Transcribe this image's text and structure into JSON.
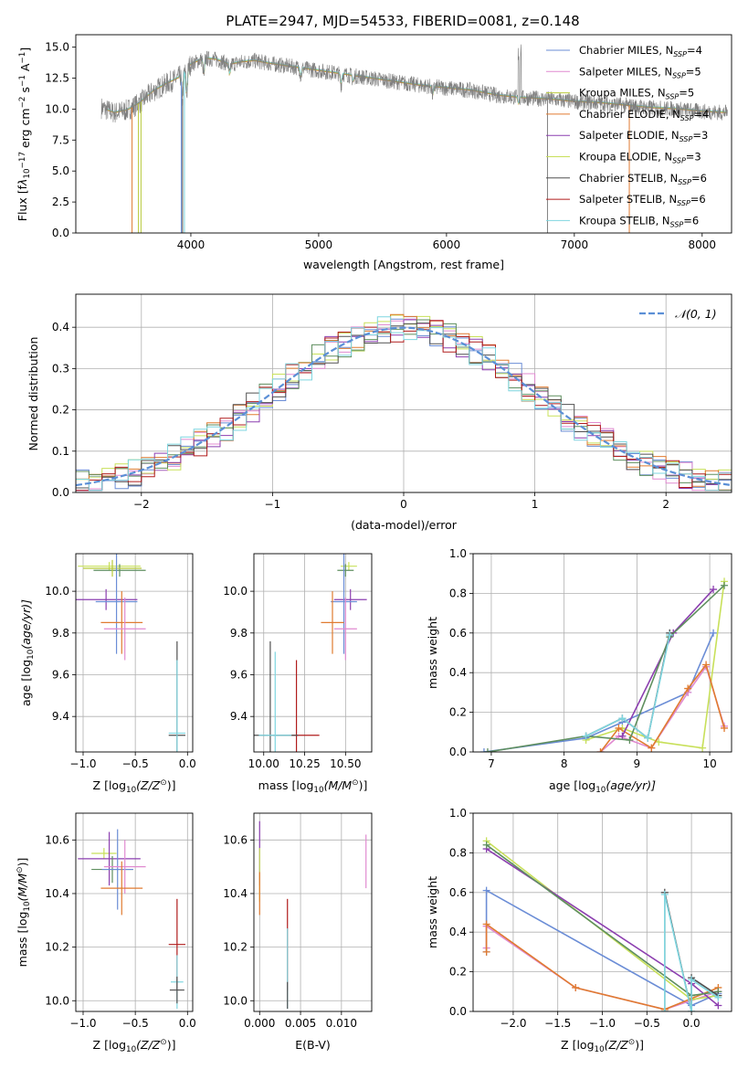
{
  "title": "PLATE=2947, MJD=54533, FIBERID=0081, z=0.148",
  "chart_data": [
    {
      "id": "spectrum",
      "type": "line",
      "title": "PLATE=2947, MJD=54533, FIBERID=0081, z=0.148",
      "xlabel": "wavelength [Angstrom, rest frame]",
      "ylabel_parts": [
        "Flux [f",
        "λ",
        "10",
        "−17",
        " erg cm",
        "−2",
        " s",
        "−1",
        " A",
        "−1",
        "]"
      ],
      "xlim": [
        3100,
        8230
      ],
      "ylim": [
        0,
        16
      ],
      "xticks": [
        4000,
        5000,
        6000,
        7000,
        8000
      ],
      "yticks": [
        0.0,
        2.5,
        5.0,
        7.5,
        10.0,
        12.5,
        15.0
      ],
      "grid": false,
      "legend_position": "right",
      "legend": [
        {
          "label": "Chabrier MILES, N",
          "sub": "SSP",
          "value": "=4",
          "color": "#6b8dd6"
        },
        {
          "label": "Salpeter MILES, N",
          "sub": "SSP",
          "value": "=5",
          "color": "#e08ad0"
        },
        {
          "label": "Kroupa MILES, N",
          "sub": "SSP",
          "value": "=5",
          "color": "#b8c93a"
        },
        {
          "label": "Chabrier ELODIE, N",
          "sub": "SSP",
          "value": "=4",
          "color": "#e07b30"
        },
        {
          "label": "Salpeter ELODIE, N",
          "sub": "SSP",
          "value": "=3",
          "color": "#8c3fb0"
        },
        {
          "label": "Kroupa ELODIE, N",
          "sub": "SSP",
          "value": "=3",
          "color": "#c8e05a"
        },
        {
          "label": "Chabrier STELIB, N",
          "sub": "SSP",
          "value": "=6",
          "color": "#505050"
        },
        {
          "label": "Salpeter STELIB, N",
          "sub": "SSP",
          "value": "=6",
          "color": "#b01c1c"
        },
        {
          "label": "Kroupa STELIB, N",
          "sub": "SSP",
          "value": "=6",
          "color": "#7fd6e0"
        }
      ],
      "data_color": "#808080",
      "continuum": {
        "x": [
          3300,
          3400,
          3500,
          3600,
          3700,
          3800,
          3900,
          4000,
          4100,
          4200,
          4300,
          4400,
          4500,
          4600,
          4800,
          5000,
          5200,
          5400,
          5600,
          5800,
          6000,
          6200,
          6400,
          6600,
          6800,
          7000,
          7200,
          7400,
          7600,
          7800,
          8000,
          8200
        ],
        "y": [
          10.1,
          9.7,
          9.9,
          10.5,
          11.4,
          12.0,
          12.5,
          13.6,
          14.1,
          14.0,
          13.6,
          13.8,
          13.9,
          13.7,
          13.4,
          13.1,
          12.8,
          12.5,
          12.2,
          11.9,
          11.7,
          11.5,
          11.1,
          10.9,
          10.8,
          10.6,
          10.5,
          10.3,
          10.1,
          10.0,
          9.8,
          9.7
        ]
      },
      "model_colors": [
        "#e07b30",
        "#b8c93a",
        "#7fd6e0"
      ]
    },
    {
      "id": "residuals",
      "type": "histogram",
      "xlabel": "(data-model)/error",
      "ylabel": "Normed distribution",
      "xlim": [
        -2.5,
        2.5
      ],
      "ylim": [
        0,
        0.48
      ],
      "xticks": [
        -2,
        -1,
        0,
        1,
        2
      ],
      "yticks": [
        0.0,
        0.1,
        0.2,
        0.3,
        0.4
      ],
      "grid": true,
      "legend_position": "top-right",
      "normal_label": "𝒩(0, 1)",
      "normal_color": "#5b8fd6",
      "bin_width": 0.1,
      "hist_colors": [
        "#6b8dd6",
        "#e08ad0",
        "#c8e05a",
        "#e07b30",
        "#8c3fb0",
        "#5f8f5f",
        "#505050",
        "#b01c1c",
        "#7fd6e0"
      ]
    },
    {
      "id": "age-vs-Z",
      "type": "scatter",
      "xlabel_parts": [
        "Z [log",
        "10",
        "(Z/Z",
        "⊙",
        ")]"
      ],
      "ylabel_parts": [
        "age  [log",
        "10",
        "(age/yr)]"
      ],
      "xlim": [
        -1.07,
        0.05
      ],
      "ylim": [
        9.23,
        10.18
      ],
      "xticks": [
        -1.0,
        -0.5,
        0.0
      ],
      "yticks": [
        9.4,
        9.6,
        9.8,
        10.0
      ],
      "grid": true,
      "points": [
        {
          "x": -0.75,
          "xerr": 0.3,
          "y": 10.12,
          "yerr": 0.02,
          "color": "#c8e05a"
        },
        {
          "x": -0.65,
          "xerr": 0.25,
          "y": 10.1,
          "yerr": 0.03,
          "color": "#5f8f5f"
        },
        {
          "x": -0.72,
          "xerr": 0.28,
          "y": 10.11,
          "yerr": 0.04,
          "color": "#b8c93a"
        },
        {
          "x": -0.78,
          "xerr": 0.3,
          "y": 9.96,
          "yerr": 0.05,
          "color": "#8c3fb0"
        },
        {
          "x": -0.68,
          "xerr": 0.2,
          "y": 9.95,
          "yerr": 0.25,
          "color": "#6b8dd6"
        },
        {
          "x": -0.63,
          "xerr": 0.2,
          "y": 9.85,
          "yerr": 0.15,
          "color": "#e07b30"
        },
        {
          "x": -0.6,
          "xerr": 0.2,
          "y": 9.82,
          "yerr": 0.15,
          "color": "#e08ad0"
        },
        {
          "x": -0.1,
          "xerr": 0.08,
          "y": 9.31,
          "yerr": 0.45,
          "color": "#505050"
        },
        {
          "x": -0.1,
          "xerr": 0.08,
          "y": 9.32,
          "yerr": 0.35,
          "color": "#7fd6e0"
        }
      ]
    },
    {
      "id": "age-vs-mass",
      "type": "scatter",
      "xlabel_parts": [
        "mass [log",
        "10",
        "(M/M",
        "⊙",
        ")]"
      ],
      "xlim": [
        9.94,
        10.66
      ],
      "ylim": [
        9.23,
        10.18
      ],
      "xticks": [
        10.0,
        10.25,
        10.5
      ],
      "xtick_labels": [
        "10.00",
        "10.25",
        "10.50"
      ],
      "yticks": [
        9.4,
        9.6,
        9.8,
        10.0
      ],
      "grid": true,
      "points": [
        {
          "x": 10.52,
          "xerr": 0.05,
          "y": 10.12,
          "yerr": 0.02,
          "color": "#c8e05a"
        },
        {
          "x": 10.5,
          "xerr": 0.05,
          "y": 10.1,
          "yerr": 0.03,
          "color": "#5f8f5f"
        },
        {
          "x": 10.53,
          "xerr": 0.1,
          "y": 9.96,
          "yerr": 0.05,
          "color": "#8c3fb0"
        },
        {
          "x": 10.49,
          "xerr": 0.08,
          "y": 9.95,
          "yerr": 0.25,
          "color": "#6b8dd6"
        },
        {
          "x": 10.42,
          "xerr": 0.07,
          "y": 9.85,
          "yerr": 0.15,
          "color": "#e07b30"
        },
        {
          "x": 10.5,
          "xerr": 0.07,
          "y": 9.82,
          "yerr": 0.15,
          "color": "#e08ad0"
        },
        {
          "x": 10.2,
          "xerr": 0.14,
          "y": 9.31,
          "yerr": 0.36,
          "color": "#b01c1c"
        },
        {
          "x": 10.04,
          "xerr": 0.17,
          "y": 9.31,
          "yerr": 0.45,
          "color": "#505050"
        },
        {
          "x": 10.07,
          "xerr": 0.1,
          "y": 9.31,
          "yerr": 0.4,
          "color": "#7fd6e0"
        }
      ]
    },
    {
      "id": "weight-vs-age",
      "type": "line",
      "xlabel_parts": [
        "age  [log",
        "10",
        "(age/yr)]"
      ],
      "ylabel": "mass weight",
      "xlim": [
        6.75,
        10.3
      ],
      "ylim": [
        0,
        1
      ],
      "xticks": [
        7,
        8,
        9,
        10
      ],
      "yticks": [
        0.0,
        0.2,
        0.4,
        0.6,
        0.8,
        1.0
      ],
      "grid": true,
      "series": [
        {
          "color": "#6b8dd6",
          "x": [
            6.9,
            8.3,
            8.8,
            9.7,
            10.05
          ],
          "y": [
            0.0,
            0.07,
            0.15,
            0.3,
            0.6
          ]
        },
        {
          "color": "#e08ad0",
          "x": [
            8.5,
            8.75,
            9.2,
            9.7,
            9.95,
            10.2
          ],
          "y": [
            0.0,
            0.08,
            0.02,
            0.3,
            0.43,
            0.13
          ]
        },
        {
          "color": "#c8e05a",
          "x": [
            8.3,
            8.8,
            9.3,
            9.9,
            10.2
          ],
          "y": [
            0.06,
            0.12,
            0.05,
            0.02,
            0.86
          ]
        },
        {
          "color": "#e07b30",
          "x": [
            8.5,
            8.75,
            9.2,
            9.7,
            9.95,
            10.2
          ],
          "y": [
            0.0,
            0.12,
            0.02,
            0.32,
            0.44,
            0.12
          ]
        },
        {
          "color": "#8c3fb0",
          "x": [
            8.8,
            9.5,
            10.05
          ],
          "y": [
            0.08,
            0.6,
            0.82
          ]
        },
        {
          "color": "#5f8f5f",
          "x": [
            6.95,
            8.3,
            8.9,
            9.45,
            10.2
          ],
          "y": [
            0.0,
            0.08,
            0.06,
            0.58,
            0.84
          ]
        },
        {
          "color": "#505050",
          "x": [
            8.3,
            8.8,
            9.15,
            9.45
          ],
          "y": [
            0.08,
            0.17,
            0.07,
            0.6
          ]
        },
        {
          "color": "#7fd6e0",
          "x": [
            8.3,
            8.8,
            9.15,
            9.45
          ],
          "y": [
            0.08,
            0.17,
            0.07,
            0.59
          ]
        }
      ]
    },
    {
      "id": "mass-vs-Z",
      "type": "scatter",
      "xlabel_parts": [
        "Z [log",
        "10",
        "(Z/Z",
        "⊙",
        ")]"
      ],
      "ylabel_parts": [
        "mass [log",
        "10",
        "(M/M",
        "⊙",
        ")]"
      ],
      "xlim": [
        -1.07,
        0.05
      ],
      "ylim": [
        9.96,
        10.7
      ],
      "xticks": [
        -1.0,
        -0.5,
        0.0
      ],
      "yticks": [
        10.0,
        10.2,
        10.4,
        10.6
      ],
      "grid": true,
      "points": [
        {
          "x": -0.8,
          "xerr": 0.12,
          "y": 10.55,
          "yerr": 0.02,
          "color": "#c8e05a"
        },
        {
          "x": -0.75,
          "xerr": 0.3,
          "y": 10.53,
          "yerr": 0.1,
          "color": "#8c3fb0"
        },
        {
          "x": -0.72,
          "xerr": 0.2,
          "y": 10.49,
          "yerr": 0.05,
          "color": "#5f8f5f"
        },
        {
          "x": -0.67,
          "xerr": 0.15,
          "y": 10.49,
          "yerr": 0.15,
          "color": "#6b8dd6"
        },
        {
          "x": -0.6,
          "xerr": 0.2,
          "y": 10.5,
          "yerr": 0.1,
          "color": "#e08ad0"
        },
        {
          "x": -0.63,
          "xerr": 0.2,
          "y": 10.42,
          "yerr": 0.1,
          "color": "#e07b30"
        },
        {
          "x": -0.1,
          "xerr": 0.08,
          "y": 10.21,
          "yerr": 0.17,
          "color": "#b01c1c"
        },
        {
          "x": -0.1,
          "xerr": 0.06,
          "y": 10.07,
          "yerr": 0.1,
          "color": "#7fd6e0"
        },
        {
          "x": -0.1,
          "xerr": 0.07,
          "y": 10.04,
          "yerr": 0.05,
          "color": "#505050"
        }
      ]
    },
    {
      "id": "mass-vs-EBV",
      "type": "scatter",
      "xlabel": "E(B-V)",
      "xlim": [
        -0.0007,
        0.0137
      ],
      "ylim": [
        9.96,
        10.7
      ],
      "xticks": [
        0.0,
        0.005,
        0.01
      ],
      "xtick_labels": [
        "0.000",
        "0.005",
        "0.010"
      ],
      "yticks": [
        10.0,
        10.2,
        10.4,
        10.6
      ],
      "grid": true,
      "points": [
        {
          "x": 0.0,
          "xerr": 0,
          "y": 10.55,
          "yerr": 0.12,
          "color": "#8c3fb0"
        },
        {
          "x": 0.0,
          "xerr": 0,
          "y": 10.47,
          "yerr": 0.1,
          "color": "#c8e05a"
        },
        {
          "x": 0.0,
          "xerr": 0,
          "y": 10.4,
          "yerr": 0.08,
          "color": "#e07b30"
        },
        {
          "x": 0.0034,
          "xerr": 0,
          "y": 10.21,
          "yerr": 0.17,
          "color": "#b01c1c"
        },
        {
          "x": 0.0034,
          "xerr": 0,
          "y": 10.12,
          "yerr": 0.15,
          "color": "#7fd6e0"
        },
        {
          "x": 0.0034,
          "xerr": 0,
          "y": 10.02,
          "yerr": 0.05,
          "color": "#505050"
        },
        {
          "x": 0.013,
          "xerr": 0,
          "y": 10.52,
          "yerr": 0.1,
          "color": "#e08ad0"
        }
      ]
    },
    {
      "id": "weight-vs-Z",
      "type": "line",
      "xlabel_parts": [
        "Z [log",
        "10",
        "(Z/Z",
        "⊙",
        ")]"
      ],
      "ylabel": "mass weight",
      "xlim": [
        -2.45,
        0.45
      ],
      "ylim": [
        0,
        1
      ],
      "xticks": [
        -2.0,
        -1.5,
        -1.0,
        -0.5,
        0.0
      ],
      "xtick_labels": [
        "−2.0",
        "−1.5",
        "−1.0",
        "−0.5",
        "0.0"
      ],
      "yticks": [
        0.0,
        0.2,
        0.4,
        0.6,
        0.8,
        1.0
      ],
      "grid": true,
      "series": [
        {
          "color": "#6b8dd6",
          "x": [
            -2.3,
            -2.3,
            0.0,
            0.3
          ],
          "y": [
            0.3,
            0.61,
            0.03,
            0.09
          ]
        },
        {
          "color": "#e08ad0",
          "x": [
            -2.3,
            -2.3,
            -1.3,
            -0.3,
            0.3
          ],
          "y": [
            0.32,
            0.43,
            0.12,
            0.01,
            0.1
          ]
        },
        {
          "color": "#c8e05a",
          "x": [
            -2.3,
            0.0,
            0.3
          ],
          "y": [
            0.86,
            0.06,
            0.08
          ]
        },
        {
          "color": "#e07b30",
          "x": [
            -2.3,
            -2.3,
            -1.3,
            -0.3,
            0.3
          ],
          "y": [
            0.3,
            0.44,
            0.12,
            0.01,
            0.12
          ]
        },
        {
          "color": "#8c3fb0",
          "x": [
            -2.3,
            0.0,
            0.3
          ],
          "y": [
            0.82,
            0.14,
            0.03
          ]
        },
        {
          "color": "#5f8f5f",
          "x": [
            -2.3,
            0.0,
            0.3
          ],
          "y": [
            0.84,
            0.08,
            0.1
          ]
        },
        {
          "color": "#505050",
          "x": [
            -0.3,
            -0.3,
            0.0,
            0.0,
            0.3
          ],
          "y": [
            0.0,
            0.6,
            0.0,
            0.17,
            0.08
          ]
        },
        {
          "color": "#7fd6e0",
          "x": [
            -0.3,
            -0.3,
            0.0,
            0.0,
            0.3
          ],
          "y": [
            0.0,
            0.59,
            0.0,
            0.16,
            0.07
          ]
        }
      ]
    }
  ]
}
